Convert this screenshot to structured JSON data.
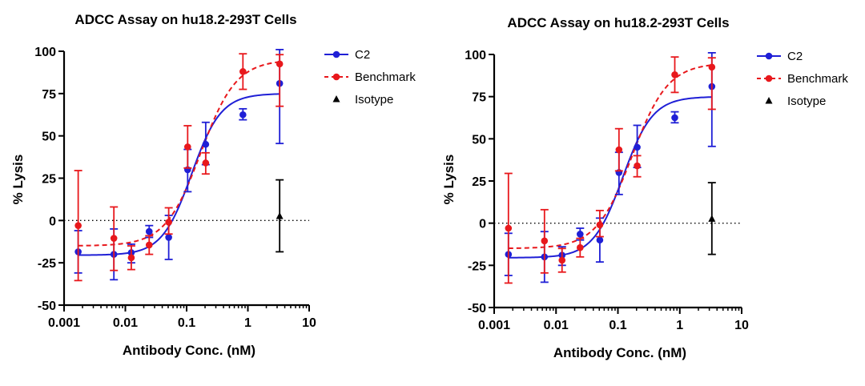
{
  "chart_data": [
    {
      "type": "scatter",
      "title": "ADCC Assay on hu18.2-293T Cells",
      "xlabel": "Antibody Conc. (nM)",
      "ylabel": "% Lysis",
      "xscale": "log",
      "xlim": [
        0.001,
        10
      ],
      "ylim": [
        -50,
        100
      ],
      "xticks": [
        0.001,
        0.01,
        0.1,
        1,
        10
      ],
      "xtick_labels": [
        "0.001",
        "0.01",
        "0.1",
        "1",
        "10"
      ],
      "yticks": [
        -50,
        -25,
        0,
        25,
        50,
        75,
        100
      ],
      "ytick_labels": [
        "-50",
        "-25",
        "0",
        "25",
        "50",
        "75",
        "100"
      ],
      "reference_line": {
        "y": 0,
        "style": "dotted"
      },
      "legend_position": "top-right",
      "series": [
        {
          "name": "C2",
          "color": "#1f1fd6",
          "marker": "circle",
          "fit": "solid",
          "fit_params": {
            "bottom": -20.5,
            "top": 75,
            "ec50": 0.12,
            "hill": 1.8
          },
          "points": [
            {
              "x": 0.0017,
              "y": -18.5,
              "low": -31,
              "high": -6
            },
            {
              "x": 0.0065,
              "y": -20,
              "low": -35,
              "high": -5
            },
            {
              "x": 0.0125,
              "y": -19,
              "low": -25,
              "high": -14
            },
            {
              "x": 0.0245,
              "y": -6.5,
              "low": -10,
              "high": -3
            },
            {
              "x": 0.051,
              "y": -10,
              "low": -23,
              "high": 3
            },
            {
              "x": 0.104,
              "y": 30,
              "low": 17,
              "high": 42
            },
            {
              "x": 0.205,
              "y": 45,
              "low": 33,
              "high": 58
            },
            {
              "x": 0.83,
              "y": 62.5,
              "low": 59.5,
              "high": 66
            },
            {
              "x": 3.3,
              "y": 81,
              "low": 45.5,
              "high": 101
            }
          ]
        },
        {
          "name": "Benchmark",
          "color": "#e8181c",
          "marker": "circle",
          "fit": "dashed",
          "fit_params": {
            "bottom": -15,
            "top": 95,
            "ec50": 0.17,
            "hill": 1.5
          },
          "points": [
            {
              "x": 0.0017,
              "y": -3,
              "low": -35.5,
              "high": 29.5
            },
            {
              "x": 0.0065,
              "y": -10.5,
              "low": -29.5,
              "high": 8
            },
            {
              "x": 0.0125,
              "y": -22,
              "low": -29,
              "high": -15
            },
            {
              "x": 0.0245,
              "y": -14.5,
              "low": -20,
              "high": -9
            },
            {
              "x": 0.051,
              "y": -1,
              "low": -8,
              "high": 7.5
            },
            {
              "x": 0.104,
              "y": 43.5,
              "low": 31,
              "high": 56
            },
            {
              "x": 0.205,
              "y": 34,
              "low": 27.5,
              "high": 40
            },
            {
              "x": 0.83,
              "y": 88,
              "low": 77.5,
              "high": 98.5
            },
            {
              "x": 3.3,
              "y": 92.5,
              "low": 67.5,
              "high": 98
            }
          ]
        },
        {
          "name": "Isotype",
          "color": "#000000",
          "marker": "triangle",
          "fit": "none",
          "points": [
            {
              "x": 3.3,
              "y": 2.5,
              "low": -18.5,
              "high": 24
            }
          ]
        }
      ]
    },
    {
      "type": "scatter",
      "title": "ADCC Assay on hu18.2-293T Cells",
      "xlabel": "Antibody Conc. (nM)",
      "ylabel": "% Lysis",
      "xscale": "log",
      "xlim": [
        0.001,
        10
      ],
      "ylim": [
        -50,
        100
      ],
      "xticks": [
        0.001,
        0.01,
        0.1,
        1,
        10
      ],
      "xtick_labels": [
        "0.001",
        "0.01",
        "0.1",
        "1",
        "10"
      ],
      "yticks": [
        -50,
        -25,
        0,
        25,
        50,
        75,
        100
      ],
      "ytick_labels": [
        "-50",
        "-25",
        "0",
        "25",
        "50",
        "75",
        "100"
      ],
      "reference_line": {
        "y": 0,
        "style": "dotted"
      },
      "legend_position": "top-right",
      "series": [
        {
          "name": "C2",
          "color": "#1f1fd6",
          "marker": "circle",
          "fit": "solid",
          "fit_params": {
            "bottom": -20.5,
            "top": 75,
            "ec50": 0.12,
            "hill": 1.8
          },
          "points": [
            {
              "x": 0.0017,
              "y": -18.5,
              "low": -31,
              "high": -6
            },
            {
              "x": 0.0065,
              "y": -20,
              "low": -35,
              "high": -5
            },
            {
              "x": 0.0125,
              "y": -19,
              "low": -25,
              "high": -14
            },
            {
              "x": 0.0245,
              "y": -6.5,
              "low": -10,
              "high": -3
            },
            {
              "x": 0.051,
              "y": -10,
              "low": -23,
              "high": 3
            },
            {
              "x": 0.104,
              "y": 30,
              "low": 17,
              "high": 42
            },
            {
              "x": 0.205,
              "y": 45,
              "low": 33,
              "high": 58
            },
            {
              "x": 0.83,
              "y": 62.5,
              "low": 59.5,
              "high": 66
            },
            {
              "x": 3.3,
              "y": 81,
              "low": 45.5,
              "high": 101
            }
          ]
        },
        {
          "name": "Benchmark",
          "color": "#e8181c",
          "marker": "circle",
          "fit": "dashed",
          "fit_params": {
            "bottom": -15,
            "top": 95,
            "ec50": 0.17,
            "hill": 1.5
          },
          "points": [
            {
              "x": 0.0017,
              "y": -3,
              "low": -35.5,
              "high": 29.5
            },
            {
              "x": 0.0065,
              "y": -10.5,
              "low": -29.5,
              "high": 8
            },
            {
              "x": 0.0125,
              "y": -22,
              "low": -29,
              "high": -15
            },
            {
              "x": 0.0245,
              "y": -14.5,
              "low": -20,
              "high": -9
            },
            {
              "x": 0.051,
              "y": -1,
              "low": -8,
              "high": 7.5
            },
            {
              "x": 0.104,
              "y": 43.5,
              "low": 31,
              "high": 56
            },
            {
              "x": 0.205,
              "y": 34,
              "low": 27.5,
              "high": 40
            },
            {
              "x": 0.83,
              "y": 88,
              "low": 77.5,
              "high": 98.5
            },
            {
              "x": 3.3,
              "y": 92.5,
              "low": 67.5,
              "high": 98
            }
          ]
        },
        {
          "name": "Isotype",
          "color": "#000000",
          "marker": "triangle",
          "fit": "none",
          "points": [
            {
              "x": 3.3,
              "y": 2.5,
              "low": -18.5,
              "high": 24
            }
          ]
        }
      ]
    }
  ]
}
